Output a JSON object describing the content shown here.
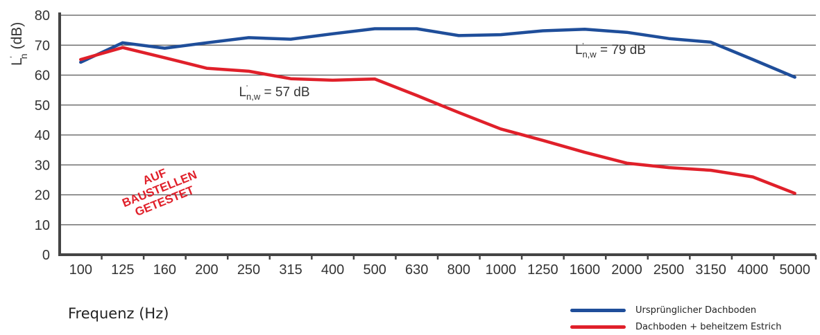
{
  "colors": {
    "series_1": "#1f4e9a",
    "series_2": "#e0202a",
    "grid": "#555555",
    "axis": "#444444"
  },
  "chart_data": {
    "type": "line",
    "x": [
      "100",
      "125",
      "160",
      "200",
      "250",
      "315",
      "400",
      "500",
      "630",
      "800",
      "1000",
      "1250",
      "1600",
      "2000",
      "2500",
      "3150",
      "4000",
      "5000"
    ],
    "ylim": [
      0,
      80
    ],
    "yticks": [
      "0",
      "10",
      "20",
      "30",
      "40",
      "50",
      "60",
      "70",
      "80"
    ],
    "ylabel": {
      "main": "L",
      "sup": "'",
      "sub": "n",
      "unit": "(dB)"
    },
    "xlabel": "Frequenz (Hz)",
    "grid": true,
    "legend_position": "bottom-right",
    "series": [
      {
        "name": "Ursprünglicher Dachboden",
        "color": "#1f4e9a",
        "values": [
          64.3,
          70.8,
          69.0,
          70.8,
          72.5,
          72.0,
          73.8,
          75.5,
          75.5,
          73.2,
          73.5,
          74.8,
          75.3,
          74.3,
          72.2,
          71.0,
          65.2,
          59.3
        ]
      },
      {
        "name": "Dachboden + beheitzem Estrich",
        "color": "#e0202a",
        "values": [
          65.2,
          69.2,
          65.8,
          62.3,
          61.3,
          58.8,
          58.3,
          58.7,
          53.2,
          47.5,
          42.0,
          38.2,
          34.2,
          30.6,
          29.1,
          28.2,
          26.0,
          20.5
        ]
      }
    ],
    "annotations": [
      {
        "main": "L",
        "sup": "'",
        "sub": "n,w",
        "text": " = 79 dB",
        "x": "1600",
        "y": 67
      },
      {
        "main": "L",
        "sup": "'",
        "sub": "n,w",
        "text": " = 57 dB",
        "x": "250",
        "y": 53
      }
    ],
    "stamp": [
      "AUF",
      "BAUSTELLEN",
      "GETESTET"
    ]
  }
}
